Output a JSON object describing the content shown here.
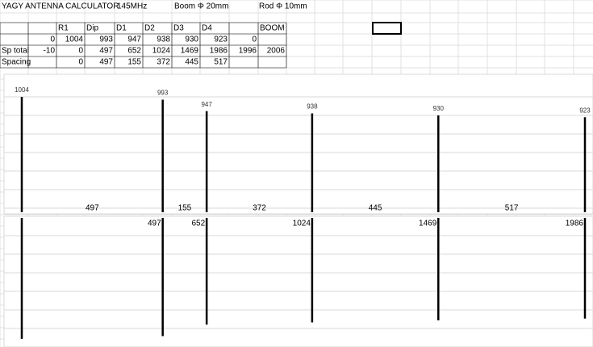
{
  "title_row": [
    "YAGY ANTENNA CALCULATOR",
    "145MHz",
    "Boom Φ 20mm",
    "Rod Φ 10mm"
  ],
  "table": {
    "header": [
      null,
      null,
      "R1",
      "Dip",
      "D1",
      "D2",
      "D3",
      "D4",
      null,
      "BOOM"
    ],
    "rows": [
      [
        null,
        0,
        1004,
        993,
        947,
        938,
        930,
        923,
        0,
        null
      ],
      [
        "Sp total",
        -10,
        0,
        497,
        652,
        1024,
        1469,
        1986,
        1996,
        2006
      ],
      [
        "Spacing",
        null,
        0,
        497,
        155,
        372,
        445,
        517,
        null,
        null
      ]
    ]
  },
  "elements": {
    "positions": [
      0,
      497,
      652,
      1024,
      1469,
      1986
    ],
    "lengths": [
      1004,
      993,
      947,
      938,
      930,
      923
    ],
    "spacings": [
      497,
      155,
      372,
      445,
      517
    ]
  }
}
